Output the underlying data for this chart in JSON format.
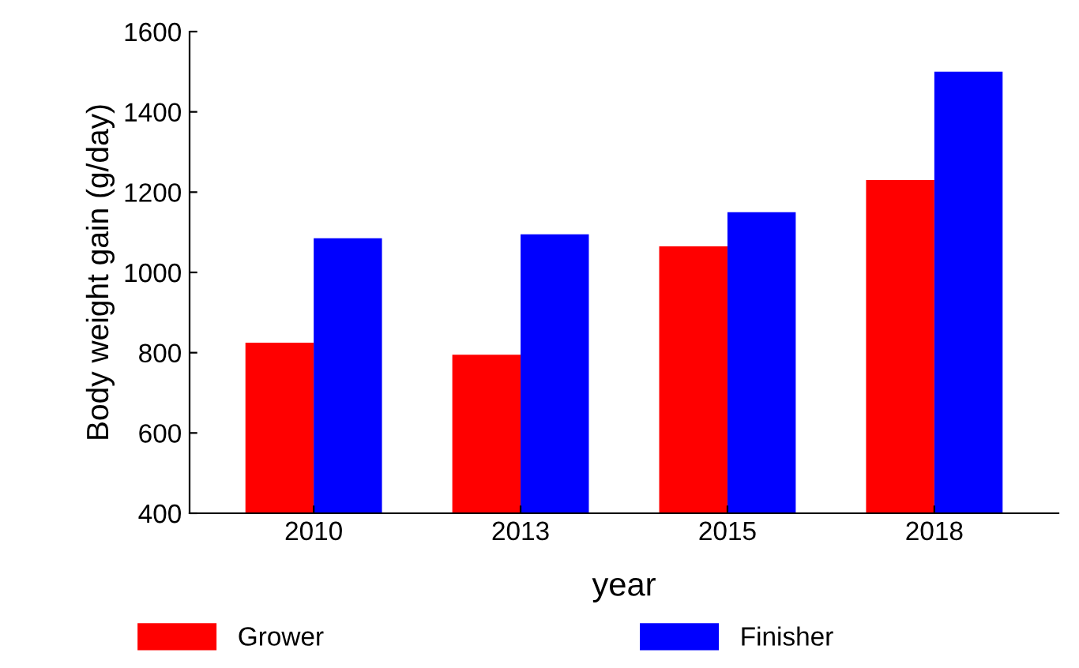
{
  "chart_data": {
    "type": "bar",
    "xlabel": "year",
    "ylabel": "Body weight gain (g/day)",
    "categories": [
      "2010",
      "2013",
      "2015",
      "2018"
    ],
    "series": [
      {
        "name": "Grower",
        "color": "#ff0000",
        "values": [
          825,
          795,
          1065,
          1230
        ]
      },
      {
        "name": "Finisher",
        "color": "#0000ff",
        "values": [
          1085,
          1095,
          1150,
          1500
        ]
      }
    ],
    "ylim": [
      400,
      1600
    ],
    "yticks": [
      400,
      600,
      800,
      1000,
      1200,
      1400,
      1600
    ],
    "grid": false,
    "legend": "bottom"
  }
}
